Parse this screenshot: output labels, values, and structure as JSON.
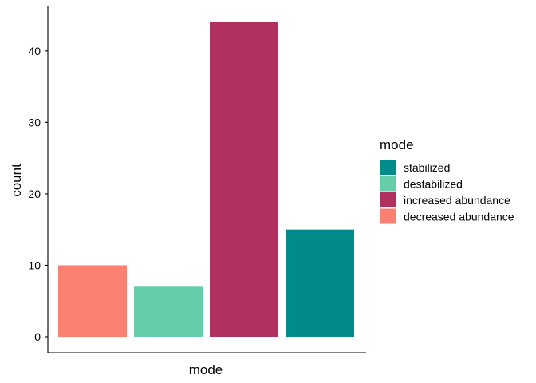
{
  "chart_data": {
    "type": "bar",
    "xlabel": "mode",
    "ylabel": "count",
    "ylim": [
      0,
      44
    ],
    "yticks": [
      0,
      10,
      20,
      30,
      40
    ],
    "grid": false,
    "legend_position": "right",
    "legend_title": "mode",
    "bars": [
      {
        "series": "decreased abundance",
        "value": 10
      },
      {
        "series": "destabilized",
        "value": 7
      },
      {
        "series": "increased abundance",
        "value": 44
      },
      {
        "series": "stabilized",
        "value": 15
      }
    ],
    "legend": [
      {
        "name": "stabilized",
        "color": "#008b8b"
      },
      {
        "name": "destabilized",
        "color": "#66cdaa"
      },
      {
        "name": "increased abundance",
        "color": "#b03060"
      },
      {
        "name": "decreased abundance",
        "color": "#fa8072"
      }
    ]
  }
}
